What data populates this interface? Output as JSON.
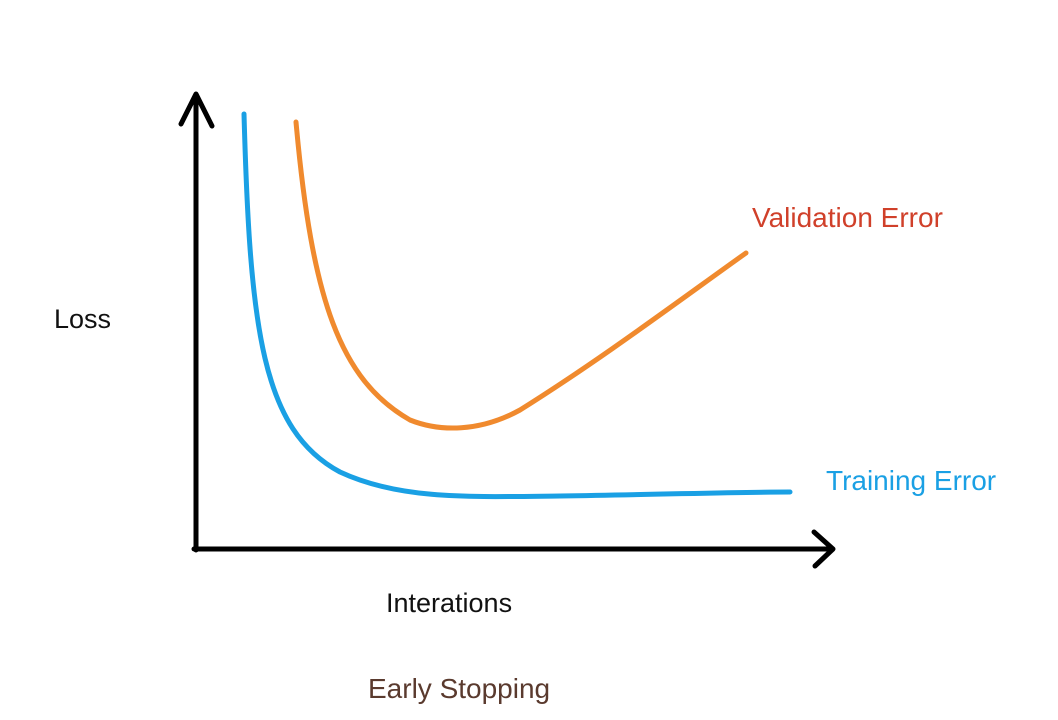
{
  "chart_data": {
    "type": "line",
    "title": "Early Stopping",
    "xlabel": "Interations",
    "ylabel": "Loss",
    "grid": false,
    "axis_ticks": false,
    "series": [
      {
        "name": "Validation Error",
        "color": "#f08a2e",
        "description_points": [
          [
            0.1,
            0.9
          ],
          [
            0.32,
            0.22
          ],
          [
            0.85,
            0.58
          ]
        ]
      },
      {
        "name": "Training Error",
        "color": "#1aa0e4",
        "description_points": [
          [
            0.05,
            0.93
          ],
          [
            0.5,
            0.12
          ],
          [
            0.95,
            0.13
          ]
        ]
      }
    ]
  },
  "colors": {
    "axis": "#000000",
    "validation": "#f08a2e",
    "validation_label": "#d0402a",
    "training": "#1aa0e4",
    "training_label": "#1aa0e4",
    "caption": "#5a3a2e"
  },
  "labels": {
    "validation": "Validation Error",
    "training": "Training Error",
    "y_axis": "Loss",
    "x_axis": "Interations",
    "caption": "Early Stopping"
  }
}
